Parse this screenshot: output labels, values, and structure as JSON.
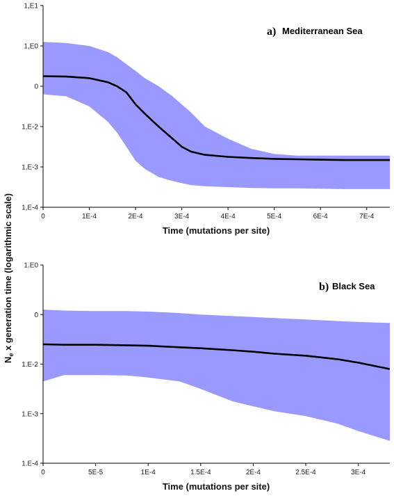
{
  "figure": {
    "ylabel_main": "N",
    "ylabel_sub": "e",
    "ylabel_rest": " x generation time (logarithmic scale)"
  },
  "chart_data": [
    {
      "type": "area",
      "panel_letter": "a)",
      "title": "Mediterranean Sea",
      "xlabel": "Time (mutations per site)",
      "ylabel": "",
      "yscale": "log",
      "xlim": [
        0,
        0.00075
      ],
      "ylim": [
        -4,
        1
      ],
      "xticks": [
        0,
        0.0001,
        0.0002,
        0.0003,
        0.0004,
        0.0005,
        0.0006,
        0.0007
      ],
      "xtick_labels": [
        "0",
        "1E-4",
        "2E-4",
        "3E-4",
        "4E-4",
        "5E-4",
        "6E-4",
        "7E-4"
      ],
      "yticks": [
        1,
        0,
        -1,
        -2,
        -3,
        -4
      ],
      "ytick_labels": [
        "1,E1",
        "1,E0",
        "0",
        "1,E-2",
        "1,E-3",
        "1,E-4"
      ],
      "band_color": "#9999ff",
      "line_color": "#000000",
      "series": [
        {
          "x": [
            0,
            5e-05,
            0.0001,
            0.00014,
            0.00016,
            0.00018,
            0.0002,
            0.00022,
            0.00025,
            0.00028,
            0.0003,
            0.00032,
            0.00035,
            0.0004,
            0.00045,
            0.0005,
            0.00055,
            0.0006,
            0.00065,
            0.0007,
            0.00075
          ],
          "median": [
            -0.75,
            -0.76,
            -0.8,
            -0.9,
            -1.0,
            -1.15,
            -1.45,
            -1.68,
            -2.0,
            -2.3,
            -2.5,
            -2.62,
            -2.7,
            -2.75,
            -2.78,
            -2.8,
            -2.81,
            -2.82,
            -2.83,
            -2.83,
            -2.83
          ],
          "upper": [
            0.1,
            0.07,
            0.0,
            -0.15,
            -0.28,
            -0.45,
            -0.62,
            -0.8,
            -1.0,
            -1.25,
            -1.45,
            -1.65,
            -2.0,
            -2.3,
            -2.55,
            -2.68,
            -2.72,
            -2.72,
            -2.72,
            -2.72,
            -2.72
          ],
          "lower": [
            -1.2,
            -1.25,
            -1.5,
            -1.88,
            -2.15,
            -2.5,
            -2.85,
            -3.05,
            -3.25,
            -3.35,
            -3.4,
            -3.45,
            -3.48,
            -3.5,
            -3.52,
            -3.53,
            -3.53,
            -3.54,
            -3.55,
            -3.55,
            -3.55
          ]
        }
      ]
    },
    {
      "type": "area",
      "panel_letter": "b)",
      "title": "Black Sea",
      "xlabel": "Time (mutations per site)",
      "ylabel": "",
      "yscale": "log",
      "xlim": [
        0,
        0.00033
      ],
      "ylim": [
        -4,
        0
      ],
      "xticks": [
        0,
        5e-05,
        0.0001,
        0.00015,
        0.0002,
        0.00025,
        0.0003
      ],
      "xtick_labels": [
        "0",
        "5E-5",
        "1E-4",
        "1.5E-4",
        "2E-4",
        "2.5E-4",
        "3E-4"
      ],
      "yticks": [
        0,
        -1,
        -2,
        -3,
        -4
      ],
      "ytick_labels": [
        "1.E0",
        "0",
        "1.E-2",
        "1.E-3",
        "1.E-4"
      ],
      "band_color": "#9999ff",
      "line_color": "#000000",
      "series": [
        {
          "x": [
            0,
            2e-05,
            5e-05,
            8e-05,
            0.0001,
            0.00013,
            0.00015,
            0.00018,
            0.0002,
            0.00022,
            0.00025,
            0.00028,
            0.0003,
            0.00033
          ],
          "median": [
            -1.6,
            -1.61,
            -1.61,
            -1.62,
            -1.63,
            -1.66,
            -1.68,
            -1.72,
            -1.75,
            -1.79,
            -1.83,
            -1.9,
            -1.97,
            -2.1
          ],
          "upper": [
            -0.9,
            -0.92,
            -0.93,
            -0.93,
            -0.94,
            -0.97,
            -1.0,
            -1.03,
            -1.05,
            -1.07,
            -1.1,
            -1.13,
            -1.15,
            -1.17
          ],
          "lower": [
            -2.35,
            -2.22,
            -2.22,
            -2.23,
            -2.27,
            -2.35,
            -2.5,
            -2.75,
            -2.85,
            -2.95,
            -3.05,
            -3.2,
            -3.35,
            -3.55
          ]
        }
      ]
    }
  ]
}
